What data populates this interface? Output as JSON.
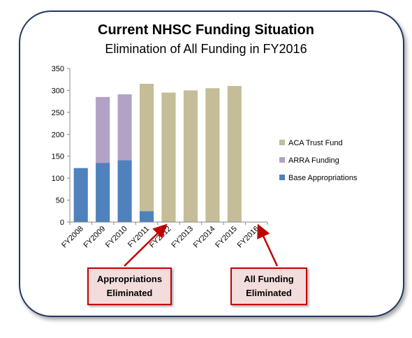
{
  "title": "Current NHSC Funding Situation",
  "subtitle": "Elimination of All Funding in FY2016",
  "callouts": {
    "appropriations": [
      "Appropriations",
      "Eliminated"
    ],
    "all_funding": [
      "All Funding",
      "Eliminated"
    ]
  },
  "chart_data": {
    "type": "bar",
    "stacked": true,
    "categories": [
      "FY2008",
      "FY2009",
      "FY2010",
      "FY2011",
      "FY2012",
      "FY2013",
      "FY2014",
      "FY2015",
      "FY2016"
    ],
    "series": [
      {
        "name": "Base Appropriations",
        "color": "#4f81bd",
        "values": [
          123,
          135,
          141,
          25,
          0,
          0,
          0,
          0,
          0
        ]
      },
      {
        "name": "ARRA Funding",
        "color": "#b3a2c7",
        "values": [
          0,
          150,
          150,
          0,
          0,
          0,
          0,
          0,
          0
        ]
      },
      {
        "name": "ACA Trust Fund",
        "color": "#c4bd97",
        "values": [
          0,
          0,
          0,
          290,
          295,
          300,
          305,
          310,
          0
        ]
      }
    ],
    "legend_order": [
      "ACA Trust Fund",
      "ARRA Funding",
      "Base Appropriations"
    ],
    "yticks": [
      0,
      50,
      100,
      150,
      200,
      250,
      300,
      350
    ],
    "ylim": [
      0,
      350
    ],
    "grid": false,
    "legend": "right"
  }
}
